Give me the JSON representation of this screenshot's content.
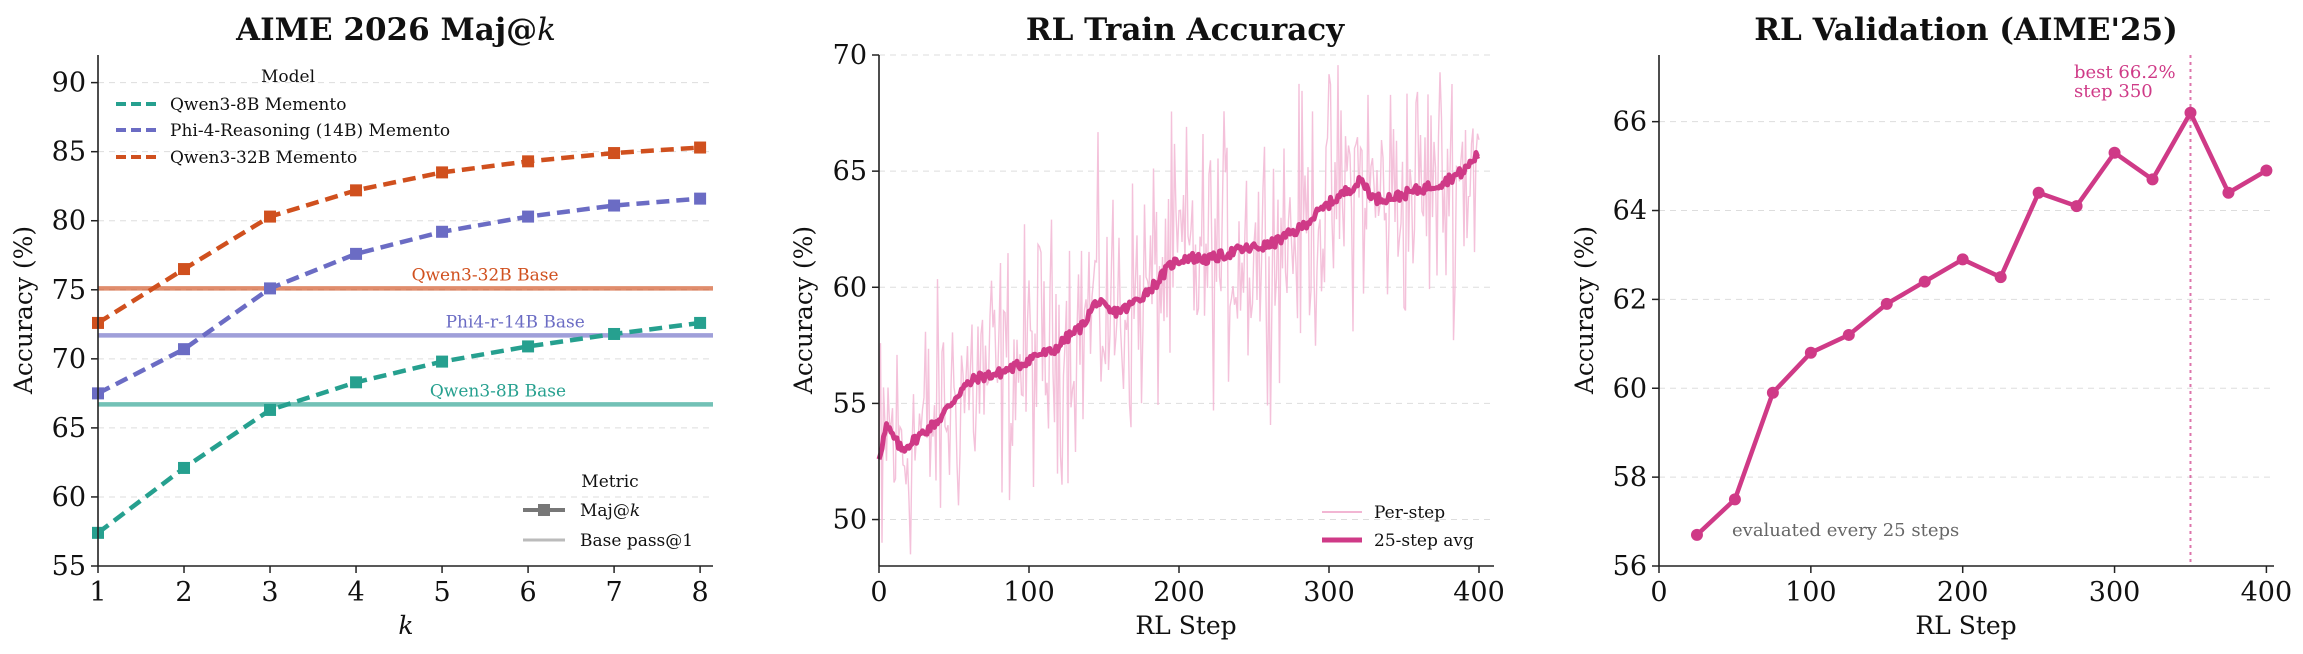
{
  "colors": {
    "qwen8": "#26a08f",
    "phi": "#6b6cc4",
    "qwen32": "#d0501e",
    "magenta": "#cf3a87",
    "pink_light": "#f2b6d3",
    "grid": "#dddddd"
  },
  "chart_data": [
    {
      "id": "aime",
      "type": "line",
      "title": "AIME 2026 Maj@k",
      "title_main": "AIME 2026 Maj@",
      "title_italic": "k",
      "xlabel": "k",
      "ylabel": "Accuracy (%)",
      "xlim": [
        1,
        8.15
      ],
      "ylim": [
        55,
        92
      ],
      "xticks": [
        1,
        2,
        3,
        4,
        5,
        6,
        7,
        8
      ],
      "yticks": [
        55,
        60,
        65,
        70,
        75,
        80,
        85,
        90
      ],
      "x": [
        1,
        2,
        3,
        4,
        5,
        6,
        7,
        8
      ],
      "series": [
        {
          "name": "Qwen3-8B Memento",
          "color_key": "qwen8",
          "values": [
            57.4,
            62.1,
            66.3,
            68.3,
            69.8,
            70.9,
            71.8,
            72.6
          ]
        },
        {
          "name": "Phi-4-Reasoning (14B) Memento",
          "color_key": "phi",
          "values": [
            67.5,
            70.7,
            75.1,
            77.6,
            79.2,
            80.3,
            81.1,
            81.6
          ]
        },
        {
          "name": "Qwen3-32B Memento",
          "color_key": "qwen32",
          "values": [
            72.6,
            76.5,
            80.3,
            82.2,
            83.5,
            84.3,
            84.9,
            85.3
          ]
        }
      ],
      "baselines": [
        {
          "label": "Qwen3-32B Base",
          "value": 75.1,
          "color_key": "qwen32",
          "label_x": 5.5
        },
        {
          "label": "Phi4-r-14B Base",
          "value": 71.7,
          "color_key": "phi",
          "label_x": 5.85
        },
        {
          "label": "Qwen3-8B Base",
          "value": 66.7,
          "color_key": "qwen8",
          "label_x": 5.65
        }
      ],
      "legend_model": {
        "title": "Model",
        "entries": [
          "Qwen3-8B Memento",
          "Phi-4-Reasoning (14B) Memento",
          "Qwen3-32B Memento"
        ]
      },
      "legend_metric": {
        "title": "Metric",
        "entries": [
          "Maj@k",
          "Base pass@1"
        ],
        "entry_majk_main": "Maj@",
        "entry_majk_italic": "k"
      }
    },
    {
      "id": "train",
      "type": "line",
      "title": "RL Train Accuracy",
      "xlabel": "RL Step",
      "ylabel": "Accuracy (%)",
      "xlim": [
        0,
        410
      ],
      "ylim": [
        48,
        70
      ],
      "xticks": [
        0,
        100,
        200,
        300,
        400
      ],
      "yticks": [
        50,
        55,
        60,
        65,
        70
      ],
      "avg_anchors_x": [
        0,
        5,
        15,
        25,
        40,
        55,
        65,
        80,
        95,
        105,
        115,
        125,
        135,
        145,
        155,
        165,
        175,
        185,
        195,
        205,
        220,
        240,
        260,
        280,
        300,
        315,
        322,
        330,
        345,
        360,
        375,
        390,
        400
      ],
      "avg_anchors_y": [
        52.7,
        54.0,
        53.0,
        53.5,
        54.3,
        55.6,
        56.1,
        56.3,
        56.7,
        57.1,
        57.2,
        57.8,
        58.3,
        59.4,
        58.9,
        59.1,
        59.6,
        60.2,
        61.0,
        61.3,
        61.2,
        61.6,
        61.8,
        62.5,
        63.6,
        64.3,
        64.6,
        63.8,
        63.9,
        64.2,
        64.5,
        65.0,
        65.8
      ],
      "noise_amplitude": 4.2,
      "legend": {
        "entries": [
          "Per-step",
          "25-step avg"
        ]
      }
    },
    {
      "id": "val",
      "type": "line",
      "title": "RL Validation (AIME'25)",
      "xlabel": "RL Step",
      "ylabel": "Accuracy (%)",
      "xlim": [
        0,
        405
      ],
      "ylim": [
        56,
        67.5
      ],
      "xticks": [
        0,
        100,
        200,
        300,
        400
      ],
      "yticks": [
        56,
        58,
        60,
        62,
        64,
        66
      ],
      "x": [
        25,
        50,
        75,
        100,
        125,
        150,
        175,
        200,
        225,
        250,
        275,
        300,
        325,
        350,
        375,
        400
      ],
      "values": [
        56.7,
        57.5,
        59.9,
        60.8,
        61.2,
        61.9,
        62.4,
        62.9,
        62.5,
        64.4,
        64.1,
        65.3,
        64.7,
        66.2,
        64.4,
        64.9
      ],
      "best_step": 350,
      "annotation": {
        "line1": "best 66.2%",
        "line2": "step 350"
      },
      "note": "evaluated every 25 steps"
    }
  ]
}
